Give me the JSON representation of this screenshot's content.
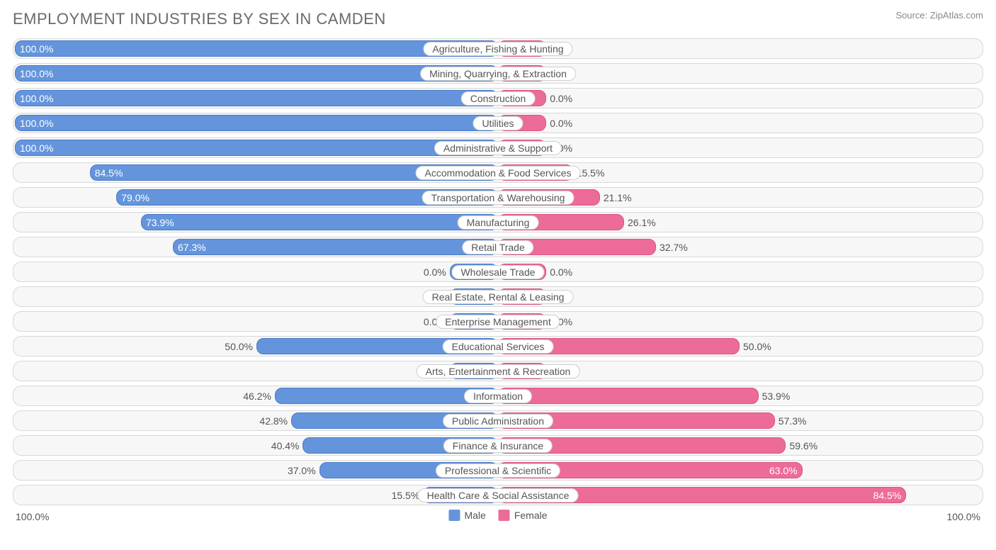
{
  "title": "EMPLOYMENT INDUSTRIES BY SEX IN CAMDEN",
  "source": "Source: ZipAtlas.com",
  "axis": {
    "left": "100.0%",
    "right": "100.0%"
  },
  "legend": {
    "male": {
      "label": "Male",
      "color": "#6495dc"
    },
    "female": {
      "label": "Female",
      "color": "#ed6b98"
    }
  },
  "colors": {
    "male_bar": "#6495dc",
    "male_border": "#4a7bc4",
    "female_bar": "#ed6b98",
    "female_border": "#d85586",
    "row_bg": "#f7f7f7",
    "row_border": "#d8d8d8",
    "label_bg": "#ffffff",
    "label_border": "#cfcfcf",
    "text": "#545454",
    "title_color": "#6a6a6a"
  },
  "chart": {
    "type": "diverging-bar",
    "min_bar_pct": 10,
    "label_inside_threshold": 60,
    "rows": [
      {
        "category": "Agriculture, Fishing & Hunting",
        "male": 100.0,
        "female": 0.0
      },
      {
        "category": "Mining, Quarrying, & Extraction",
        "male": 100.0,
        "female": 0.0
      },
      {
        "category": "Construction",
        "male": 100.0,
        "female": 0.0
      },
      {
        "category": "Utilities",
        "male": 100.0,
        "female": 0.0
      },
      {
        "category": "Administrative & Support",
        "male": 100.0,
        "female": 0.0
      },
      {
        "category": "Accommodation & Food Services",
        "male": 84.5,
        "female": 15.5
      },
      {
        "category": "Transportation & Warehousing",
        "male": 79.0,
        "female": 21.1
      },
      {
        "category": "Manufacturing",
        "male": 73.9,
        "female": 26.1
      },
      {
        "category": "Retail Trade",
        "male": 67.3,
        "female": 32.7
      },
      {
        "category": "Wholesale Trade",
        "male": 0.0,
        "female": 0.0
      },
      {
        "category": "Real Estate, Rental & Leasing",
        "male": 0.0,
        "female": 0.0
      },
      {
        "category": "Enterprise Management",
        "male": 0.0,
        "female": 0.0
      },
      {
        "category": "Educational Services",
        "male": 50.0,
        "female": 50.0
      },
      {
        "category": "Arts, Entertainment & Recreation",
        "male": 0.0,
        "female": 0.0
      },
      {
        "category": "Information",
        "male": 46.2,
        "female": 53.9
      },
      {
        "category": "Public Administration",
        "male": 42.8,
        "female": 57.3
      },
      {
        "category": "Finance & Insurance",
        "male": 40.4,
        "female": 59.6
      },
      {
        "category": "Professional & Scientific",
        "male": 37.0,
        "female": 63.0
      },
      {
        "category": "Health Care & Social Assistance",
        "male": 15.5,
        "female": 84.5
      }
    ]
  }
}
